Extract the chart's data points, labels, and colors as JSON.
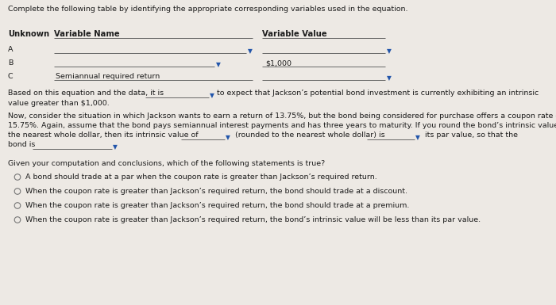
{
  "title": "Complete the following table by identifying the appropriate corresponding variables used in the equation.",
  "col_unknown": "Unknown",
  "col_varname": "Variable Name",
  "col_varval": "Variable Value",
  "rows": [
    {
      "id": "A",
      "name": "",
      "value": "",
      "name_has_arrow": true,
      "value_has_arrow": true
    },
    {
      "id": "B",
      "name": "",
      "value": "$1,000",
      "name_has_arrow": true,
      "value_has_arrow": false
    },
    {
      "id": "C",
      "name": "Semiannual required return",
      "value": "",
      "name_has_arrow": false,
      "value_has_arrow": true
    }
  ],
  "arrow": "▼",
  "p1_a": "Based on this equation and the data, it is",
  "p1_b": "to expect that Jackson’s potential bond investment is currently exhibiting an intrinsic",
  "p1_c": "value greater than $1,000.",
  "p2_l1": "Now, consider the situation in which Jackson wants to earn a return of 13.75%, but the bond being considered for purchase offers a coupon rate of",
  "p2_l2": "15.75%. Again, assume that the bond pays semiannual interest payments and has three years to maturity. If you round the bond’s intrinsic value to",
  "p2_l3a": "the nearest whole dollar, then its intrinsic value of",
  "p2_l3b": "(rounded to the nearest whole dollar) is",
  "p2_l3c": "its par value, so that the",
  "p2_l4": "bond is",
  "s3": "Given your computation and conclusions, which of the following statements is true?",
  "opts": [
    "A bond should trade at a par when the coupon rate is greater than Jackson’s required return.",
    "When the coupon rate is greater than Jackson’s required return, the bond should trade at a discount.",
    "When the coupon rate is greater than Jackson’s required return, the bond should trade at a premium.",
    "When the coupon rate is greater than Jackson’s required return, the bond’s intrinsic value will be less than its par value."
  ],
  "bg": "#ede9e4",
  "fg": "#1c1c1c",
  "lc": "#666666",
  "ac": "#2255aa",
  "fs": 6.8,
  "fs_hdr": 7.2,
  "fs_title": 6.8
}
